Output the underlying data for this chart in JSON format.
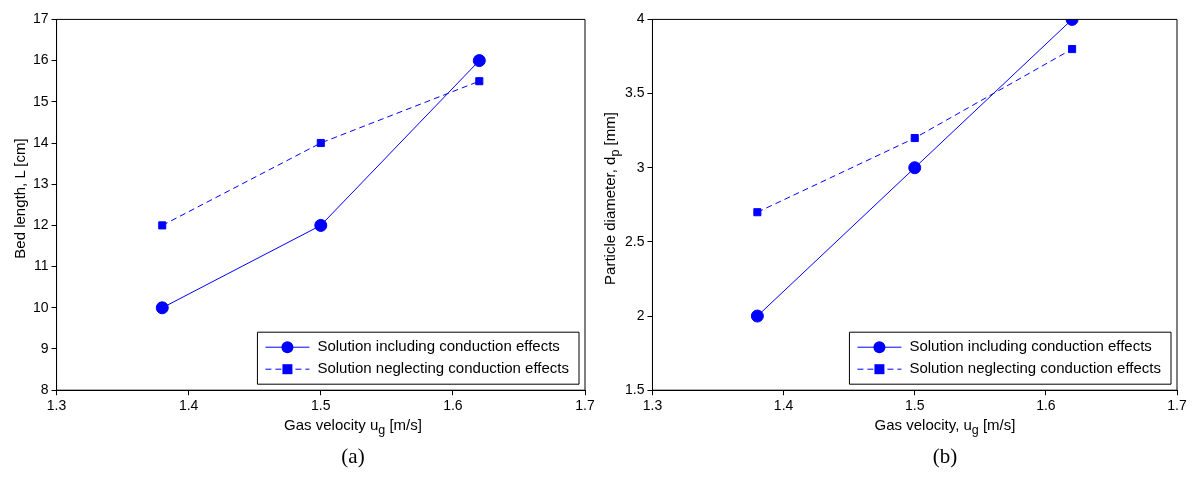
{
  "chart_data": [
    {
      "type": "line",
      "xlabel": "Gas velocity u$_{g}$ [m/s]",
      "ylabel": "Bed length, L [cm]",
      "annotations": [
        "(a)"
      ],
      "x": [
        1.38,
        1.5,
        1.62
      ],
      "xlim": [
        1.3,
        1.7
      ],
      "xticks": [
        1.3,
        1.4,
        1.5,
        1.6,
        1.7
      ],
      "ylim": [
        8,
        17
      ],
      "yticks": [
        8,
        9,
        10,
        11,
        12,
        13,
        14,
        15,
        16,
        17
      ],
      "grid": false,
      "legend": "bottom right",
      "series": [
        {
          "name": "Solution including conduction effects",
          "color": "#0000ff",
          "values": [
            10,
            12,
            16
          ],
          "marker": "circle",
          "line_style": "solid"
        },
        {
          "name": "Solution neglecting conduction effects",
          "color": "#0000ff",
          "values": [
            12,
            14,
            15.5
          ],
          "marker": "square",
          "line_style": "dashed"
        }
      ]
    },
    {
      "type": "line",
      "xlabel": "Gas velocity, u$_{g}$ [m/s]",
      "ylabel": "Particle diameter, d$_{p}$ [mm]",
      "annotations": [
        "(b)"
      ],
      "x": [
        1.38,
        1.5,
        1.62
      ],
      "xlim": [
        1.3,
        1.7
      ],
      "xticks": [
        1.3,
        1.4,
        1.5,
        1.6,
        1.7
      ],
      "ylim": [
        1.5,
        4
      ],
      "yticks": [
        1.5,
        2,
        2.5,
        3,
        3.5,
        4
      ],
      "grid": false,
      "legend": "bottom right",
      "series": [
        {
          "name": "Solution including conduction effects",
          "color": "#0000ff",
          "values": [
            2,
            3,
            4
          ],
          "marker": "circle",
          "line_style": "solid"
        },
        {
          "name": "Solution neglecting conduction effects",
          "color": "#0000ff",
          "values": [
            2.7,
            3.2,
            3.8
          ],
          "marker": "square",
          "line_style": "dashed"
        }
      ]
    }
  ]
}
